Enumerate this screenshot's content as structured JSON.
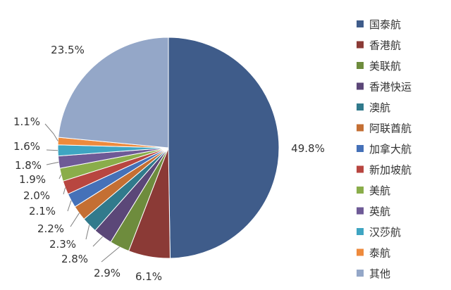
{
  "chart_data": {
    "type": "pie",
    "title": "",
    "legend_position": "right",
    "slices": [
      {
        "name": "国泰航",
        "value": 49.8,
        "label": "49.8%",
        "color": "#3F5C8A"
      },
      {
        "name": "香港航",
        "value": 6.1,
        "label": "6.1%",
        "color": "#8B3A36"
      },
      {
        "name": "美联航",
        "value": 2.9,
        "label": "2.9%",
        "color": "#6E8C3D"
      },
      {
        "name": "香港快运",
        "value": 2.8,
        "label": "2.8%",
        "color": "#5B4778"
      },
      {
        "name": "澳航",
        "value": 2.3,
        "label": "2.3%",
        "color": "#317A8C"
      },
      {
        "name": "阿联酋航",
        "value": 2.2,
        "label": "2.2%",
        "color": "#C46F33"
      },
      {
        "name": "加拿大航",
        "value": 2.1,
        "label": "2.1%",
        "color": "#4571B8"
      },
      {
        "name": "新加坡航",
        "value": 2.0,
        "label": "2.0%",
        "color": "#B84640"
      },
      {
        "name": "美航",
        "value": 1.9,
        "label": "1.9%",
        "color": "#8AAD4A"
      },
      {
        "name": "英航",
        "value": 1.8,
        "label": "1.8%",
        "color": "#6E5A96"
      },
      {
        "name": "汉莎航",
        "value": 1.6,
        "label": "1.6%",
        "color": "#3FA5C2"
      },
      {
        "name": "泰航",
        "value": 1.1,
        "label": "1.1%",
        "color": "#EE8A3C"
      },
      {
        "name": "其他",
        "value": 23.5,
        "label": "23.5%",
        "color": "#94A7C8"
      }
    ]
  }
}
